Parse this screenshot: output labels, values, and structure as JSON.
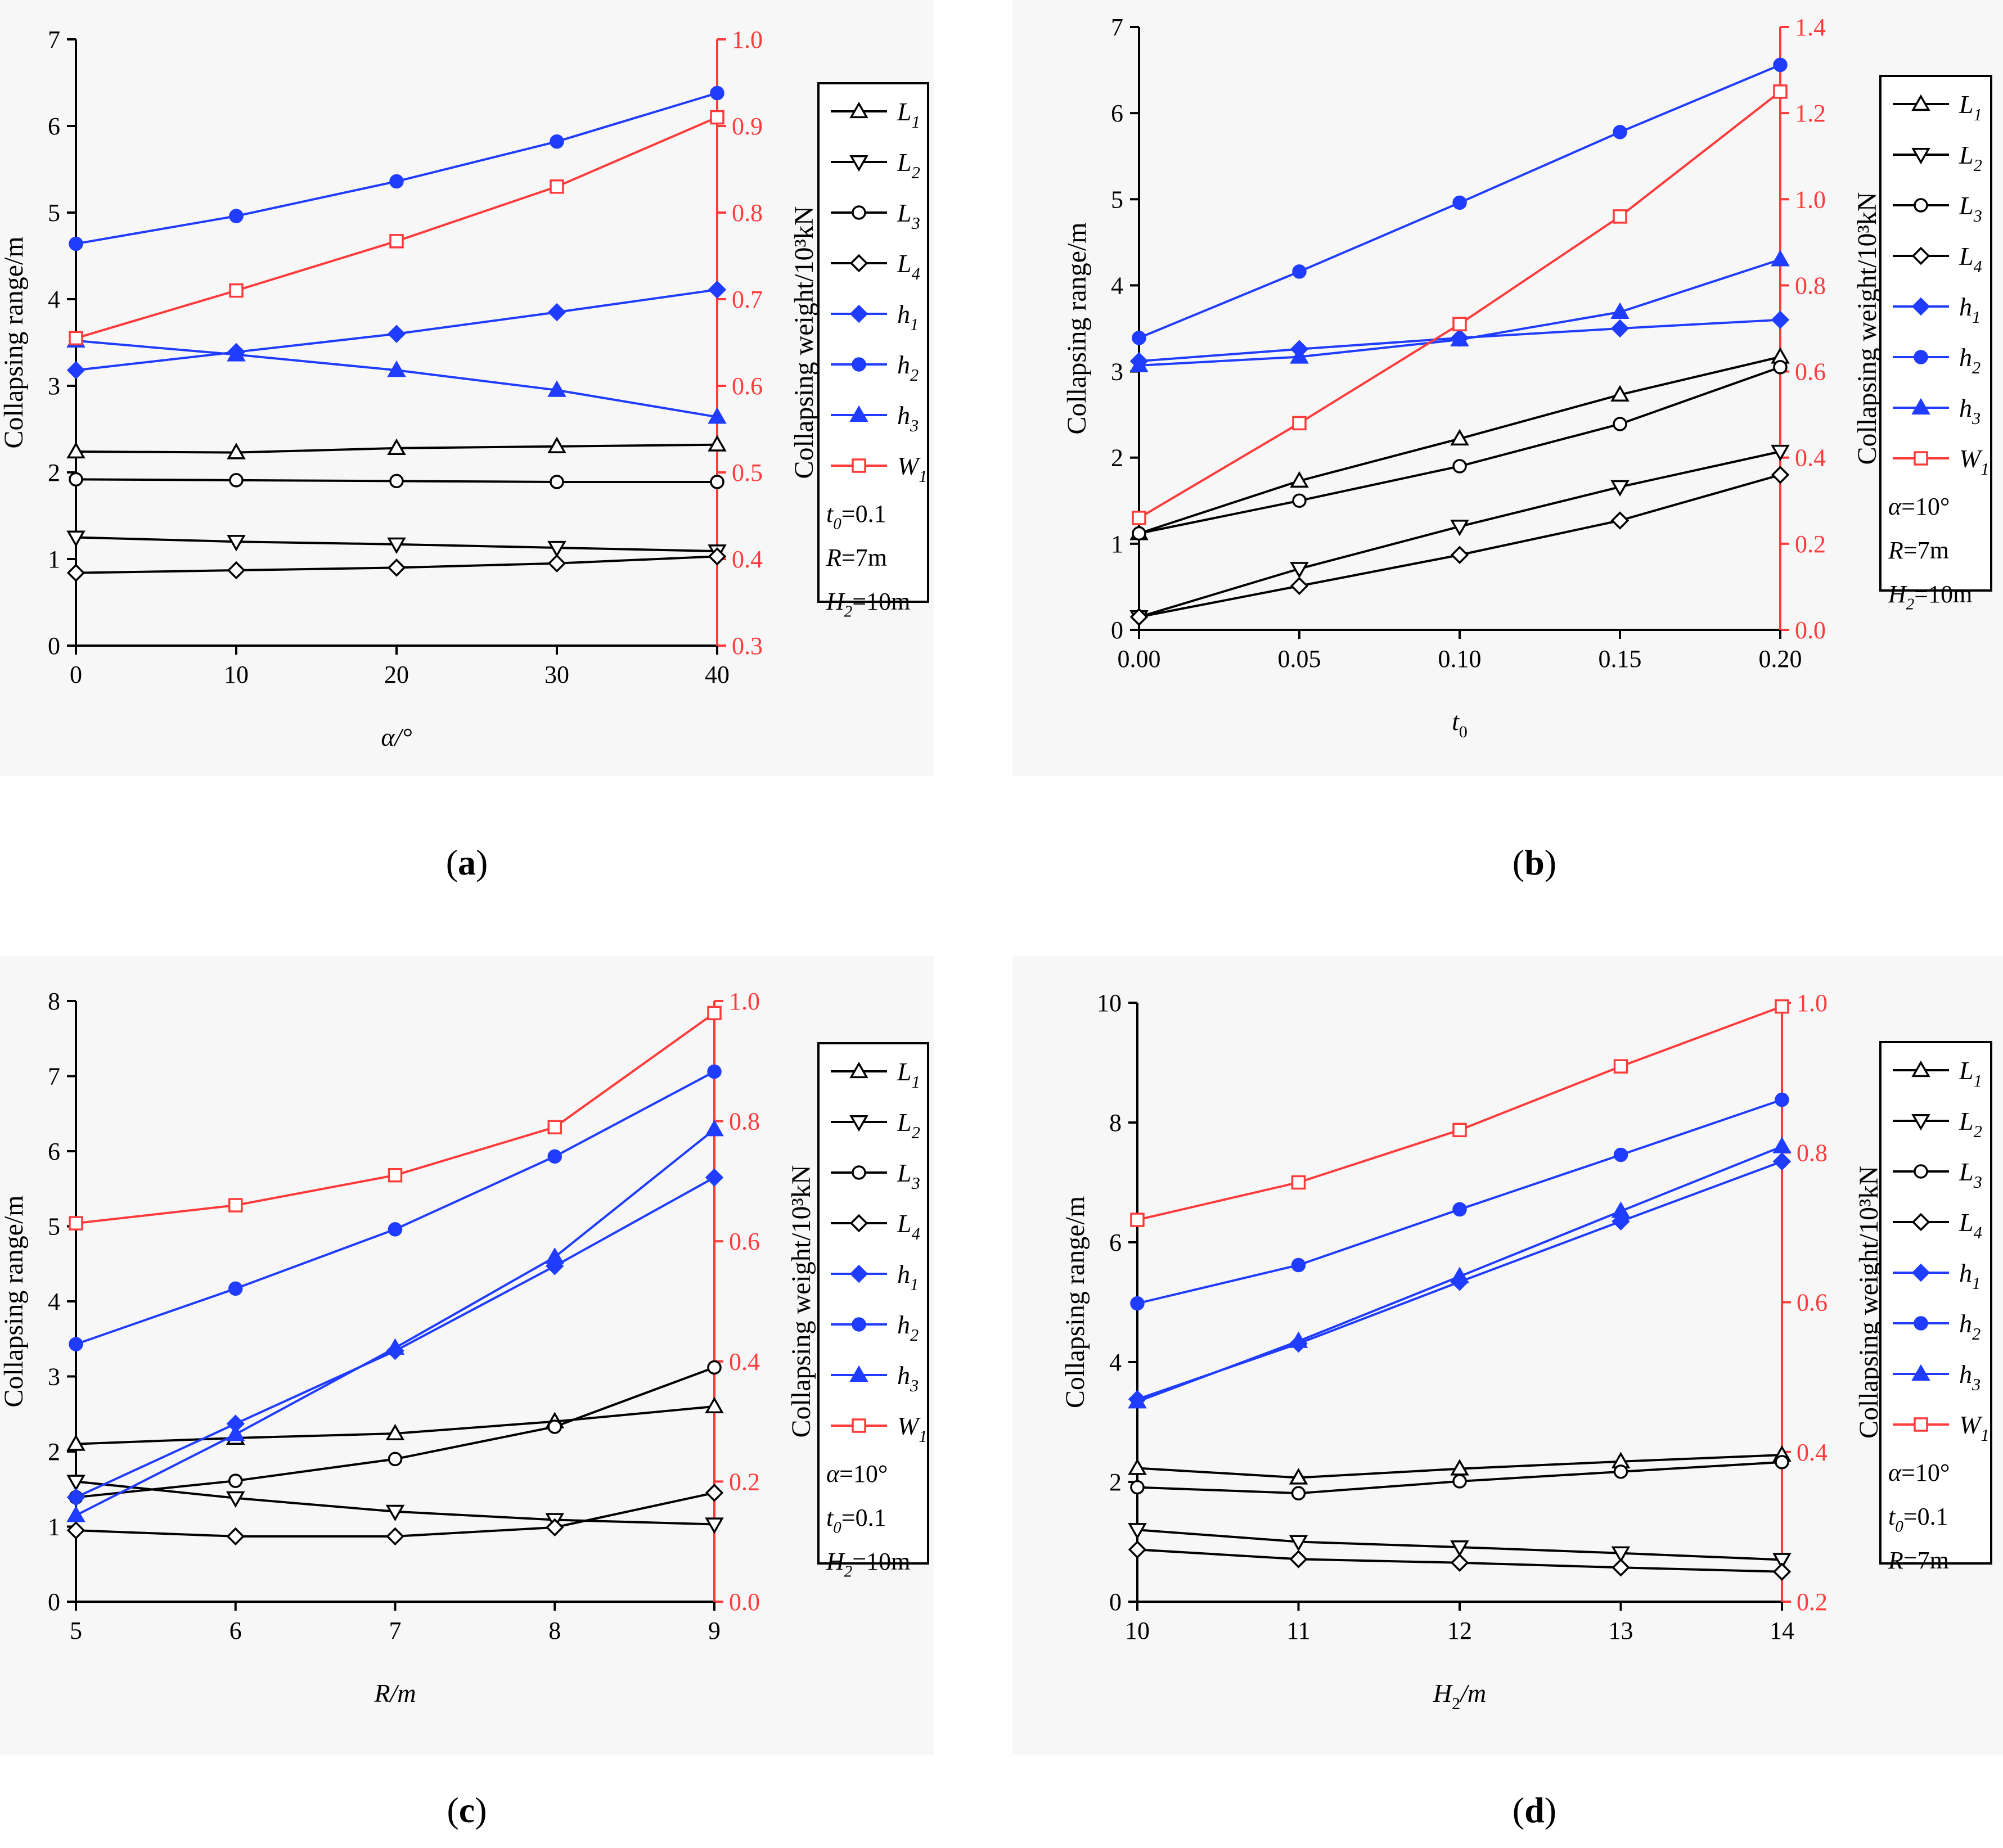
{
  "colors": {
    "black": "#000000",
    "blue": "#1f3cff",
    "red": "#ff3b3b",
    "panel_bg": "#f7f7f7"
  },
  "chart_data": [
    {
      "type": "line",
      "panel_label": "a",
      "xlabel": "α/°",
      "ylabel_left": "Collapsing range/m",
      "ylabel_right": "Collapsing weight/10³kN",
      "x": [
        0,
        10,
        20,
        30,
        40
      ],
      "xticks": [
        "0",
        "10",
        "20",
        "30",
        "40"
      ],
      "ylim": [
        0,
        7
      ],
      "yticks": [
        "0",
        "1",
        "2",
        "3",
        "4",
        "5",
        "6",
        "7"
      ],
      "y2lim": [
        0.3,
        1.0
      ],
      "y2ticks": [
        "0.3",
        "0.4",
        "0.5",
        "0.6",
        "0.7",
        "0.8",
        "0.9",
        "1.0"
      ],
      "series": [
        {
          "name": "L1",
          "sym": "L",
          "sub": "1",
          "marker": "tri-up",
          "color": "black",
          "axis": "left",
          "values": [
            2.24,
            2.23,
            2.28,
            2.3,
            2.32
          ]
        },
        {
          "name": "L2",
          "sym": "L",
          "sub": "2",
          "marker": "tri-down",
          "color": "black",
          "axis": "left",
          "values": [
            1.25,
            1.2,
            1.17,
            1.13,
            1.09
          ]
        },
        {
          "name": "L3",
          "sym": "L",
          "sub": "3",
          "marker": "circle",
          "color": "black",
          "axis": "left",
          "values": [
            1.92,
            1.91,
            1.9,
            1.89,
            1.89
          ]
        },
        {
          "name": "L4",
          "sym": "L",
          "sub": "4",
          "marker": "diamond",
          "color": "black",
          "axis": "left",
          "values": [
            0.84,
            0.87,
            0.9,
            0.95,
            1.03
          ]
        },
        {
          "name": "h1",
          "sym": "h",
          "sub": "1",
          "marker": "diamond-filled",
          "color": "blue",
          "axis": "left",
          "values": [
            3.18,
            3.39,
            3.6,
            3.85,
            4.11
          ]
        },
        {
          "name": "h2",
          "sym": "h",
          "sub": "2",
          "marker": "circle-filled",
          "color": "blue",
          "axis": "left",
          "values": [
            4.64,
            4.96,
            5.36,
            5.82,
            6.38
          ]
        },
        {
          "name": "h3",
          "sym": "h",
          "sub": "3",
          "marker": "tri-up-filled",
          "color": "blue",
          "axis": "left",
          "values": [
            3.52,
            3.36,
            3.18,
            2.95,
            2.64
          ]
        },
        {
          "name": "W1",
          "sym": "W",
          "sub": "1",
          "marker": "square",
          "color": "red",
          "axis": "right",
          "values": [
            0.655,
            0.71,
            0.767,
            0.83,
            0.91
          ]
        }
      ],
      "params": [
        {
          "sym": "t",
          "sub": "0",
          "val": "=0.1"
        },
        {
          "sym": "R",
          "sub": "",
          "val": "=7m"
        },
        {
          "sym": "H",
          "sub": "2",
          "val": "=10m"
        }
      ]
    },
    {
      "type": "line",
      "panel_label": "b",
      "xlabel": "t",
      "xlabel_sub": "0",
      "ylabel_left": "Collapsing range/m",
      "ylabel_right": "Collapsing weight/10³kN",
      "x": [
        0,
        0.05,
        0.1,
        0.15,
        0.2
      ],
      "xticks": [
        "0.00",
        "0.05",
        "0.10",
        "0.15",
        "0.20"
      ],
      "ylim": [
        0,
        7
      ],
      "yticks": [
        "0",
        "1",
        "2",
        "3",
        "4",
        "5",
        "6",
        "7"
      ],
      "y2lim": [
        0,
        1.4
      ],
      "y2ticks": [
        "0.0",
        "0.2",
        "0.4",
        "0.6",
        "0.8",
        "1.0",
        "1.2",
        "1.4"
      ],
      "series": [
        {
          "name": "L1",
          "sym": "L",
          "sub": "1",
          "marker": "tri-up",
          "color": "black",
          "axis": "left",
          "values": [
            1.12,
            1.73,
            2.22,
            2.73,
            3.17
          ]
        },
        {
          "name": "L2",
          "sym": "L",
          "sub": "2",
          "marker": "tri-down",
          "color": "black",
          "axis": "left",
          "values": [
            0.15,
            0.71,
            1.2,
            1.66,
            2.07
          ]
        },
        {
          "name": "L3",
          "sym": "L",
          "sub": "3",
          "marker": "circle",
          "color": "black",
          "axis": "left",
          "values": [
            1.12,
            1.5,
            1.9,
            2.39,
            3.05
          ]
        },
        {
          "name": "L4",
          "sym": "L",
          "sub": "4",
          "marker": "diamond",
          "color": "black",
          "axis": "left",
          "values": [
            0.15,
            0.51,
            0.87,
            1.27,
            1.8
          ]
        },
        {
          "name": "h1",
          "sym": "h",
          "sub": "1",
          "marker": "diamond-filled",
          "color": "blue",
          "axis": "left",
          "values": [
            3.12,
            3.26,
            3.39,
            3.5,
            3.6
          ]
        },
        {
          "name": "h2",
          "sym": "h",
          "sub": "2",
          "marker": "circle-filled",
          "color": "blue",
          "axis": "left",
          "values": [
            3.39,
            4.16,
            4.96,
            5.78,
            6.56
          ]
        },
        {
          "name": "h3",
          "sym": "h",
          "sub": "3",
          "marker": "tri-up-filled",
          "color": "blue",
          "axis": "left",
          "values": [
            3.07,
            3.17,
            3.37,
            3.69,
            4.3
          ]
        },
        {
          "name": "W1",
          "sym": "W",
          "sub": "1",
          "marker": "square",
          "color": "red",
          "axis": "right",
          "values": [
            0.26,
            0.48,
            0.71,
            0.96,
            1.25
          ]
        }
      ],
      "params": [
        {
          "sym": "α",
          "sub": "",
          "val": "=10°"
        },
        {
          "sym": "R",
          "sub": "",
          "val": "=7m"
        },
        {
          "sym": "H",
          "sub": "2",
          "val": "=10m"
        }
      ]
    },
    {
      "type": "line",
      "panel_label": "c",
      "xlabel": "R/m",
      "ylabel_left": "Collapsing range/m",
      "ylabel_right": "Collapsing weight/10³kN",
      "x": [
        5,
        6,
        7,
        8,
        9
      ],
      "xticks": [
        "5",
        "6",
        "7",
        "8",
        "9"
      ],
      "ylim": [
        0,
        8
      ],
      "yticks": [
        "0",
        "1",
        "2",
        "3",
        "4",
        "5",
        "6",
        "7",
        "8"
      ],
      "y2lim": [
        0,
        1.0
      ],
      "y2ticks": [
        "0.0",
        "0.2",
        "0.4",
        "0.6",
        "0.8",
        "1.0"
      ],
      "series": [
        {
          "name": "L1",
          "sym": "L",
          "sub": "1",
          "marker": "tri-up",
          "color": "black",
          "axis": "left",
          "values": [
            2.1,
            2.18,
            2.24,
            2.4,
            2.6
          ]
        },
        {
          "name": "L2",
          "sym": "L",
          "sub": "2",
          "marker": "tri-down",
          "color": "black",
          "axis": "left",
          "values": [
            1.6,
            1.38,
            1.2,
            1.09,
            1.03
          ]
        },
        {
          "name": "L3",
          "sym": "L",
          "sub": "3",
          "marker": "circle",
          "color": "black",
          "axis": "left",
          "values": [
            1.39,
            1.61,
            1.9,
            2.33,
            3.12
          ]
        },
        {
          "name": "L4",
          "sym": "L",
          "sub": "4",
          "marker": "diamond",
          "color": "black",
          "axis": "left",
          "values": [
            0.95,
            0.87,
            0.87,
            0.99,
            1.45
          ]
        },
        {
          "name": "h1",
          "sym": "h",
          "sub": "1",
          "marker": "diamond-filled",
          "color": "blue",
          "axis": "left",
          "values": [
            1.39,
            2.37,
            3.34,
            4.47,
            5.65
          ]
        },
        {
          "name": "h2",
          "sym": "h",
          "sub": "2",
          "marker": "circle-filled",
          "color": "blue",
          "axis": "left",
          "values": [
            3.43,
            4.17,
            4.96,
            5.93,
            7.06
          ]
        },
        {
          "name": "h3",
          "sym": "h",
          "sub": "3",
          "marker": "tri-up-filled",
          "color": "blue",
          "axis": "left",
          "values": [
            1.15,
            2.23,
            3.38,
            4.59,
            6.29
          ]
        },
        {
          "name": "W1",
          "sym": "W",
          "sub": "1",
          "marker": "square",
          "color": "red",
          "axis": "right",
          "values": [
            0.63,
            0.66,
            0.71,
            0.79,
            0.98
          ]
        }
      ],
      "params": [
        {
          "sym": "α",
          "sub": "",
          "val": "=10°"
        },
        {
          "sym": "t",
          "sub": "0",
          "val": "=0.1"
        },
        {
          "sym": "H",
          "sub": "2",
          "val": "=10m"
        }
      ]
    },
    {
      "type": "line",
      "panel_label": "d",
      "xlabel": "H",
      "xlabel_sub": "2",
      "xlabel_suffix": "/m",
      "ylabel_left": "Collapsing range/m",
      "ylabel_right": "Collapsing weight/10³kN",
      "x": [
        10,
        11,
        12,
        13,
        14
      ],
      "xticks": [
        "10",
        "11",
        "12",
        "13",
        "14"
      ],
      "ylim": [
        0,
        10
      ],
      "yticks": [
        "0",
        "2",
        "4",
        "6",
        "8",
        "10"
      ],
      "y2lim": [
        0.2,
        1.0
      ],
      "y2ticks": [
        "0.2",
        "0.4",
        "0.6",
        "0.8",
        "1.0"
      ],
      "series": [
        {
          "name": "L1",
          "sym": "L",
          "sub": "1",
          "marker": "tri-up",
          "color": "black",
          "axis": "left",
          "values": [
            2.23,
            2.07,
            2.22,
            2.34,
            2.45
          ]
        },
        {
          "name": "L2",
          "sym": "L",
          "sub": "2",
          "marker": "tri-down",
          "color": "black",
          "axis": "left",
          "values": [
            1.2,
            1.0,
            0.91,
            0.81,
            0.7
          ]
        },
        {
          "name": "L3",
          "sym": "L",
          "sub": "3",
          "marker": "circle",
          "color": "black",
          "axis": "left",
          "values": [
            1.91,
            1.81,
            2.01,
            2.17,
            2.33
          ]
        },
        {
          "name": "L4",
          "sym": "L",
          "sub": "4",
          "marker": "diamond",
          "color": "black",
          "axis": "left",
          "values": [
            0.87,
            0.71,
            0.65,
            0.57,
            0.5
          ]
        },
        {
          "name": "h1",
          "sym": "h",
          "sub": "1",
          "marker": "diamond-filled",
          "color": "blue",
          "axis": "left",
          "values": [
            3.38,
            4.31,
            5.34,
            6.35,
            7.35
          ]
        },
        {
          "name": "h2",
          "sym": "h",
          "sub": "2",
          "marker": "circle-filled",
          "color": "blue",
          "axis": "left",
          "values": [
            4.98,
            5.62,
            6.55,
            7.46,
            8.38
          ]
        },
        {
          "name": "h3",
          "sym": "h",
          "sub": "3",
          "marker": "tri-up-filled",
          "color": "blue",
          "axis": "left",
          "values": [
            3.34,
            4.35,
            5.43,
            6.52,
            7.6
          ]
        },
        {
          "name": "W1",
          "sym": "W",
          "sub": "1",
          "marker": "square",
          "color": "red",
          "axis": "right",
          "values": [
            0.71,
            0.76,
            0.83,
            0.915,
            0.995
          ]
        }
      ],
      "params": [
        {
          "sym": "α",
          "sub": "",
          "val": "=10°"
        },
        {
          "sym": "t",
          "sub": "0",
          "val": "=0.1"
        },
        {
          "sym": "R",
          "sub": "",
          "val": "=7m"
        }
      ]
    }
  ]
}
